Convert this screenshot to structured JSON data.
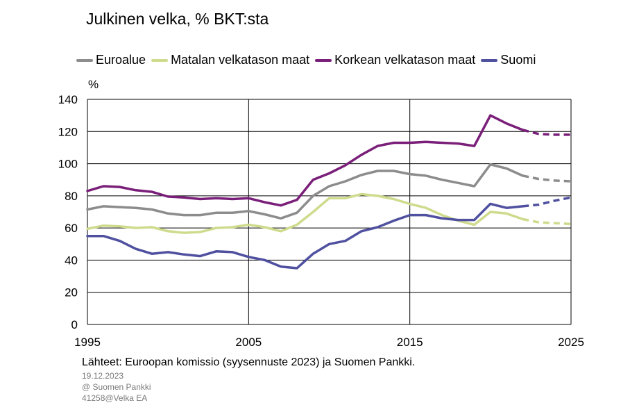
{
  "title": "Julkinen velka, % BKT:sta",
  "unit_label": "%",
  "source": "Lähteet: Euroopan komissio (syysennuste 2023) ja Suomen Pankki.",
  "meta": [
    "19.12.2023",
    "@ Suomen Pankki",
    "41258@Velka EA"
  ],
  "colors": {
    "euroalue": "#8c8c8c",
    "matala": "#cfdb8c",
    "korkea": "#7a1f79",
    "suomi": "#4f509f"
  },
  "chart_data": {
    "type": "line",
    "title": "Julkinen velka, % BKT:sta",
    "ylabel": "%",
    "xlim": [
      1995,
      2025
    ],
    "ylim": [
      0,
      140
    ],
    "y_ticks": [
      0,
      20,
      40,
      60,
      80,
      100,
      120,
      140
    ],
    "x_ticks": [
      1995,
      2005,
      2015,
      2025
    ],
    "vertical_grid": [
      2005,
      2015
    ],
    "horizontal_grid": true,
    "legend_position": "top",
    "forecast_from": 2022,
    "x": [
      1995,
      1996,
      1997,
      1998,
      1999,
      2000,
      2001,
      2002,
      2003,
      2004,
      2005,
      2006,
      2007,
      2008,
      2009,
      2010,
      2011,
      2012,
      2013,
      2014,
      2015,
      2016,
      2017,
      2018,
      2019,
      2020,
      2021,
      2022,
      2023,
      2024,
      2025
    ],
    "series": [
      {
        "name": "Euroalue",
        "color_key": "euroalue",
        "values": [
          71.5,
          73.5,
          73,
          72.5,
          71.5,
          69,
          68,
          68,
          69.5,
          69.5,
          70.5,
          68.5,
          66,
          69.5,
          80,
          86,
          89,
          93,
          95.5,
          95.5,
          93.5,
          92.5,
          90,
          88,
          86,
          99.5,
          97,
          92.5,
          90.5,
          89.5,
          89
        ]
      },
      {
        "name": "Matalan velkatason maat",
        "color_key": "matala",
        "values": [
          59.5,
          61.5,
          61,
          60,
          60.5,
          58,
          57,
          57.5,
          60,
          60.5,
          62,
          60.5,
          58,
          62,
          70,
          78.5,
          78.5,
          81,
          80,
          78,
          75,
          72.5,
          68,
          64.5,
          62,
          70,
          69,
          65.5,
          63.5,
          63,
          62.5
        ]
      },
      {
        "name": "Korkean velkatason maat",
        "color_key": "korkea",
        "values": [
          83,
          86,
          85.5,
          83.5,
          82.5,
          79.5,
          79,
          78,
          78.5,
          78,
          78.5,
          76,
          74,
          77.5,
          90,
          94,
          99,
          105.5,
          111,
          113,
          113,
          113.5,
          113,
          112.5,
          111,
          130,
          125,
          121,
          118.5,
          118,
          118
        ]
      },
      {
        "name": "Suomi",
        "color_key": "suomi",
        "values": [
          55,
          55,
          52,
          47,
          44,
          45,
          43.5,
          42.5,
          45.5,
          45,
          42,
          40,
          36,
          35,
          44,
          50,
          52,
          58,
          60.5,
          64.5,
          68,
          68,
          66,
          65,
          65,
          75,
          72.5,
          73.5,
          74.5,
          77,
          79
        ]
      }
    ]
  }
}
